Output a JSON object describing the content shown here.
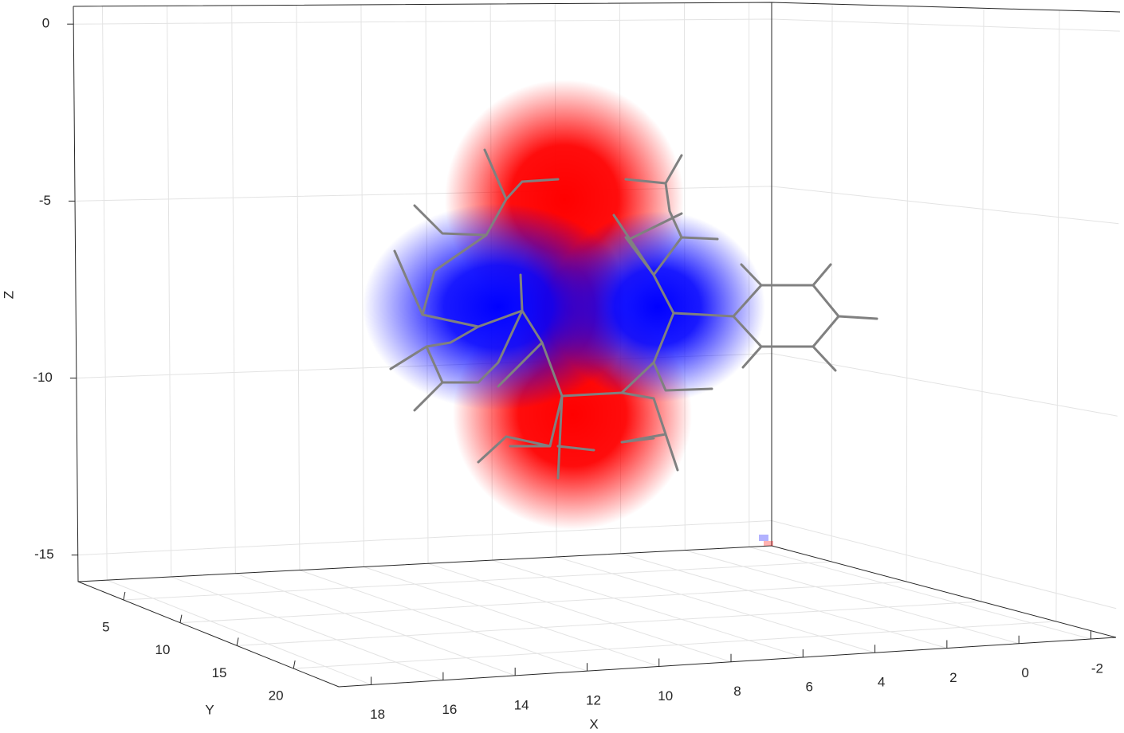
{
  "chart_data": {
    "type": "orbital3d",
    "x_label": "X",
    "y_label": "Y",
    "z_label": "Z",
    "xlim": [
      18.9,
      -2.7
    ],
    "ylim": [
      1,
      24
    ],
    "zlim": [
      -15.75,
      0.5
    ],
    "xticks": [
      18,
      16,
      14,
      12,
      10,
      8,
      6,
      4,
      2,
      0,
      -2
    ],
    "yticks": [
      5,
      10,
      15,
      20
    ],
    "zticks": [
      0,
      -5,
      -10,
      -15
    ],
    "grid": true,
    "positive_color": "#ff0000",
    "negative_color": "#0000ff"
  }
}
